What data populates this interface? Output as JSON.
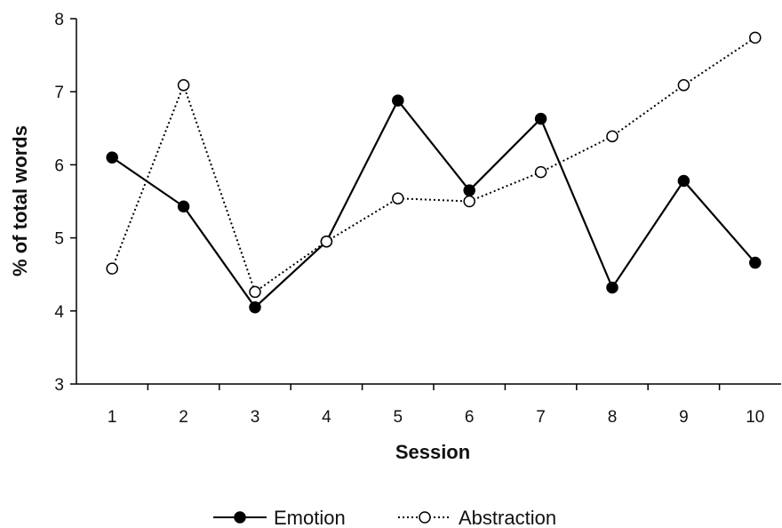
{
  "chart_data": {
    "type": "line",
    "title": "",
    "xlabel": "Session",
    "ylabel": "% of total words",
    "x": [
      1,
      2,
      3,
      4,
      5,
      6,
      7,
      8,
      9,
      10
    ],
    "ylim": [
      3,
      8
    ],
    "yticks": [
      3,
      4,
      5,
      6,
      7,
      8
    ],
    "grid": false,
    "legend_position": "bottom",
    "series": [
      {
        "name": "Emotion",
        "values": [
          6.1,
          5.43,
          4.05,
          4.95,
          6.88,
          5.65,
          6.63,
          4.32,
          5.78,
          4.66
        ],
        "line_style": "solid",
        "marker": "filled-circle",
        "color": "#000000"
      },
      {
        "name": "Abstraction",
        "values": [
          4.58,
          7.09,
          4.26,
          4.95,
          5.54,
          5.5,
          5.9,
          6.39,
          7.09,
          7.74
        ],
        "line_style": "dotted",
        "marker": "open-circle",
        "color": "#000000"
      }
    ]
  }
}
